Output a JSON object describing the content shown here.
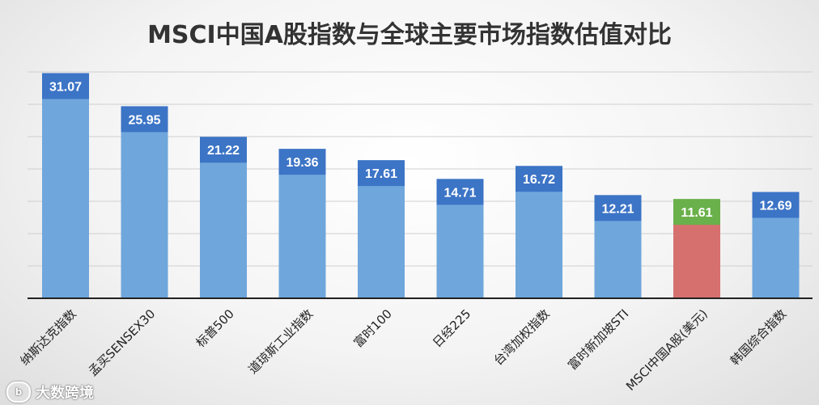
{
  "chart_data": {
    "type": "bar",
    "title": "MSCI中国A股指数与全球主要市场指数估值对比",
    "categories": [
      "纳斯达克指数",
      "孟买SENSEX30",
      "标普500",
      "道琼斯工业指数",
      "富时100",
      "日经225",
      "台湾加权指数",
      "富时新加坡STI",
      "MSCI中国A股(美元)",
      "韩国综合指数"
    ],
    "values": [
      31.07,
      25.95,
      21.22,
      19.36,
      17.61,
      14.71,
      16.72,
      12.21,
      11.61,
      12.69
    ],
    "value_labels": [
      "31.07",
      "25.95",
      "21.22",
      "19.36",
      "17.61",
      "14.71",
      "16.72",
      "12.21",
      "11.61",
      "12.69"
    ],
    "highlight_index": 8,
    "ylim": [
      0,
      35
    ],
    "grid": true,
    "legend": "none",
    "colors": {
      "bar": "#6fa6dc",
      "bar_label_bg": "#3c74c6",
      "highlight_bar": "#d6706f",
      "highlight_label_bg": "#6ab04b",
      "gridline": "#cfcfcf",
      "axis": "#222222"
    }
  },
  "watermark": {
    "logo_text": "b",
    "text": "大数跨境"
  }
}
